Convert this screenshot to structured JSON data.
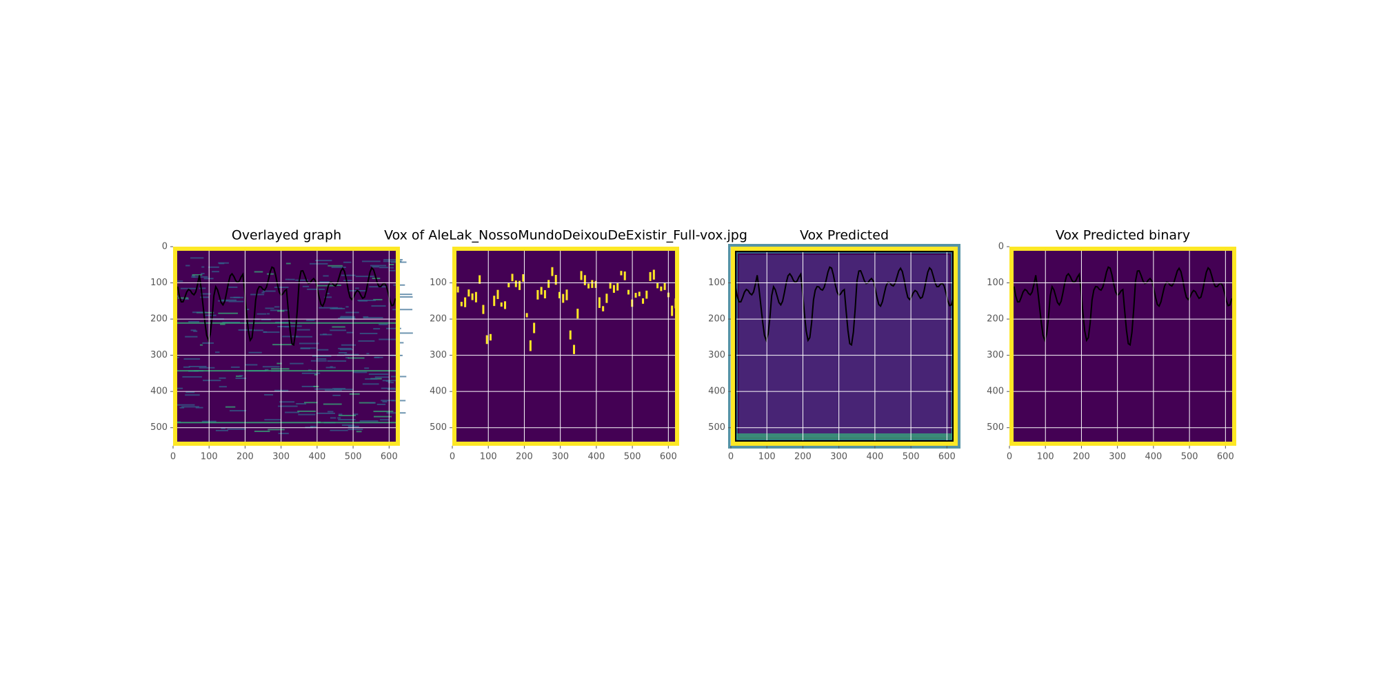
{
  "chart_data": [
    {
      "type": "image",
      "title": "Overlayed graph",
      "xlim": [
        0,
        630
      ],
      "ylim": [
        550,
        0
      ],
      "xticks": [
        0,
        100,
        200,
        300,
        400,
        500,
        600
      ],
      "yticks": [
        0,
        100,
        200,
        300,
        400,
        500
      ],
      "grid": true
    },
    {
      "type": "image",
      "title": "Vox of AleLak_NossoMundoDeixouDeExistir_Full-vox.jpg",
      "xlim": [
        0,
        630
      ],
      "ylim": [
        550,
        0
      ],
      "xticks": [
        0,
        100,
        200,
        300,
        400,
        500,
        600
      ],
      "yticks": [
        100,
        200,
        300,
        400,
        500
      ],
      "grid": true
    },
    {
      "type": "image",
      "title": "Vox Predicted",
      "xlim": [
        0,
        630
      ],
      "ylim": [
        550,
        0
      ],
      "xticks": [
        0,
        100,
        200,
        300,
        400,
        500,
        600
      ],
      "yticks": [
        100,
        200,
        300,
        400,
        500
      ],
      "grid": true
    },
    {
      "type": "image",
      "title": "Vox Predicted binary",
      "xlim": [
        0,
        630
      ],
      "ylim": [
        550,
        0
      ],
      "xticks": [
        0,
        100,
        200,
        300,
        400,
        500,
        600
      ],
      "yticks": [
        0,
        100,
        200,
        300,
        400,
        500
      ],
      "grid": true
    }
  ]
}
